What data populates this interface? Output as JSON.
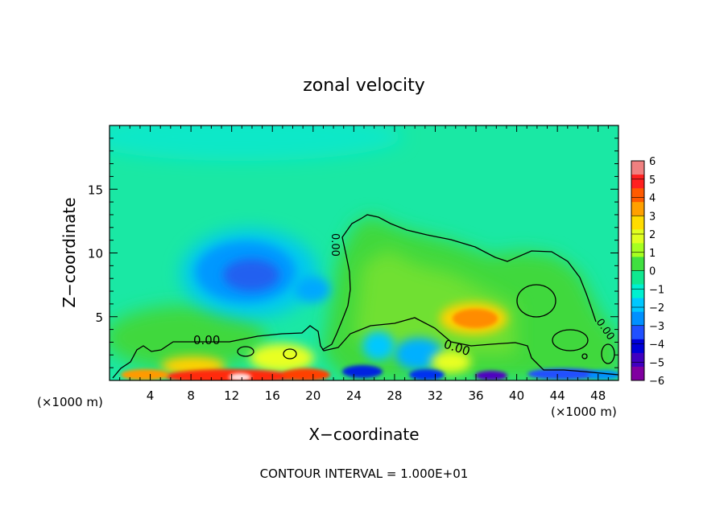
{
  "chart_data": {
    "type": "heatmap",
    "title": "zonal velocity",
    "xlabel": "X−coordinate",
    "ylabel": "Z−coordinate",
    "x_unit_left": "(×1000 m)",
    "x_unit_right": "(×1000 m)",
    "footer": "CONTOUR INTERVAL = 1.000E+01",
    "xlim": [
      0,
      50
    ],
    "ylim": [
      0,
      20
    ],
    "x_ticks": [
      4,
      8,
      12,
      16,
      20,
      24,
      28,
      32,
      36,
      40,
      44,
      48
    ],
    "x_tick_labels": [
      "4",
      "8",
      "12",
      "16",
      "20",
      "24",
      "28",
      "32",
      "36",
      "40",
      "44",
      "48"
    ],
    "y_ticks": [
      5,
      10,
      15
    ],
    "y_tick_labels": [
      "5",
      "10",
      "15"
    ],
    "colorbar": {
      "min": -6,
      "max": 6,
      "ticks": [
        6,
        5,
        4,
        3,
        2,
        1,
        0,
        -1,
        -2,
        -3,
        -4,
        -5,
        -6
      ],
      "tick_labels": [
        "6",
        "5",
        "4",
        "3",
        "2",
        "1",
        "0",
        "−1",
        "−2",
        "−3",
        "−4",
        "−5",
        "−6"
      ],
      "colors": [
        "#f08080",
        "#ff2020",
        "#ff5a00",
        "#ffa000",
        "#ffdc00",
        "#e0ff20",
        "#a6ff20",
        "#40e040",
        "#10e890",
        "#00f0d0",
        "#00c8ff",
        "#0090ff",
        "#2050ff",
        "#0000d8",
        "#4000c0",
        "#8000a0"
      ]
    },
    "contour_level_label": "0.00",
    "contour_labels": [
      {
        "text": "0.00",
        "x": 9.8,
        "z": 3.2
      },
      {
        "text": "0.00",
        "x": 33.8,
        "z": 3.0
      },
      {
        "text": "0.00",
        "x": 22.4,
        "z": 10.0
      },
      {
        "text": "0.00",
        "x": 48.3,
        "z": 3.5
      }
    ],
    "features": [
      {
        "name": "upper-level negative core",
        "x": 14,
        "z": 8,
        "value": -3.5
      },
      {
        "name": "mid-level positive maximum",
        "x": 36,
        "z": 5,
        "value": 3.0
      },
      {
        "name": "near-surface positive band",
        "x": 13,
        "z": 0.5,
        "value": 5.5
      },
      {
        "name": "near-surface negative band",
        "x": 42,
        "z": 0.5,
        "value": -5
      }
    ]
  }
}
